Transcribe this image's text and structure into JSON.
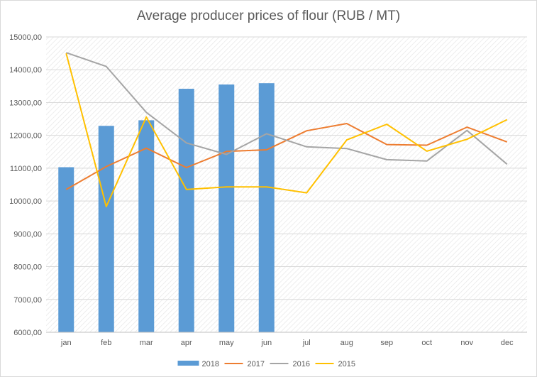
{
  "chart_data": {
    "type": "bar",
    "title": "Average producer prices of flour (RUB / MT)",
    "categories": [
      "jan",
      "feb",
      "mar",
      "apr",
      "may",
      "jun",
      "jul",
      "aug",
      "sep",
      "oct",
      "nov",
      "dec"
    ],
    "ylim": [
      6000,
      15000
    ],
    "y_ticks": [
      "6000,00",
      "7000,00",
      "8000,00",
      "9000,00",
      "10000,00",
      "11000,00",
      "12000,00",
      "13000,00",
      "14000,00",
      "15000,00"
    ],
    "grid": true,
    "legend_position": "bottom",
    "series": [
      {
        "name": "2018",
        "kind": "bar",
        "color": "#5b9bd5",
        "values": [
          11030,
          12290,
          12460,
          13420,
          13550,
          13590,
          null,
          null,
          null,
          null,
          null,
          null
        ]
      },
      {
        "name": "2017",
        "kind": "line",
        "color": "#ed7d31",
        "values": [
          10350,
          11050,
          11610,
          11020,
          11510,
          11560,
          12140,
          12360,
          11720,
          11700,
          12250,
          11800
        ]
      },
      {
        "name": "2016",
        "kind": "line",
        "color": "#a5a5a5",
        "values": [
          14520,
          14100,
          12700,
          11770,
          11420,
          12050,
          11650,
          11600,
          11260,
          11220,
          12150,
          11120
        ]
      },
      {
        "name": "2015",
        "kind": "line",
        "color": "#ffc000",
        "values": [
          14500,
          9830,
          12560,
          10350,
          10430,
          10430,
          10250,
          11860,
          12340,
          11520,
          11880,
          12480
        ]
      }
    ]
  }
}
